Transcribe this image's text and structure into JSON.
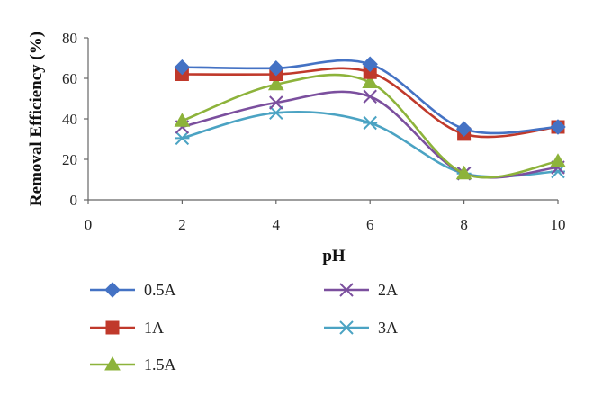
{
  "chart_data": {
    "type": "line",
    "title": "",
    "xlabel": "pH",
    "ylabel": "Removal Efficiency (%)",
    "xlim": [
      0,
      10
    ],
    "ylim": [
      0,
      80
    ],
    "x_ticks": [
      "0",
      "2",
      "4",
      "6",
      "8",
      "10"
    ],
    "y_ticks": [
      "0",
      "20",
      "40",
      "60",
      "80"
    ],
    "grid": false,
    "smooth": true,
    "legend_position": "bottom",
    "x": [
      2,
      4,
      6,
      8,
      10
    ],
    "series": [
      {
        "name": "0.5A",
        "values": [
          65.5,
          65,
          67,
          35,
          36
        ],
        "color": "#4472C4",
        "marker": "diamond"
      },
      {
        "name": "1A",
        "values": [
          62,
          62,
          63,
          32.5,
          36
        ],
        "color": "#C0392B",
        "marker": "square"
      },
      {
        "name": "1.5A",
        "values": [
          39,
          57,
          58,
          13,
          19
        ],
        "color": "#8DB33B",
        "marker": "triangle"
      },
      {
        "name": "2A",
        "values": [
          36,
          48,
          51,
          13,
          16
        ],
        "color": "#7B4F9E",
        "marker": "x"
      },
      {
        "name": "3A",
        "values": [
          30.5,
          43,
          38,
          13,
          14
        ],
        "color": "#4BA3C3",
        "marker": "star"
      }
    ]
  }
}
